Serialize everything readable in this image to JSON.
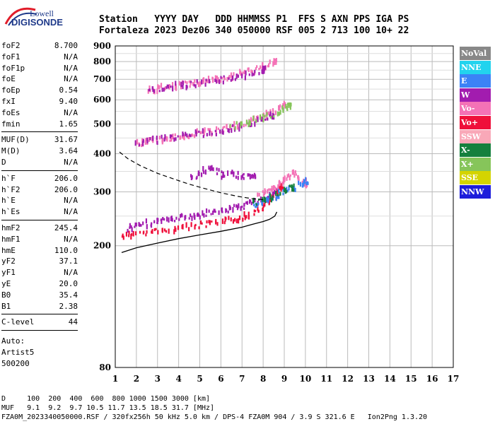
{
  "logo": {
    "top": "Lowell",
    "bottom": "DIGISONDE"
  },
  "header": {
    "line1": "Station   YYYY DAY   DDD HHMMSS P1  FFS S AXN PPS IGA PS",
    "line2": "Fortaleza 2023 Dez06 340 050000 RSF 005 2 713 100 10+ 22"
  },
  "params": {
    "group1": [
      {
        "label": "foF2",
        "value": "8.700"
      },
      {
        "label": "foF1",
        "value": "N/A"
      },
      {
        "label": "foF1p",
        "value": "N/A"
      },
      {
        "label": "foE",
        "value": "N/A"
      },
      {
        "label": "foEp",
        "value": "0.54"
      },
      {
        "label": "fxI",
        "value": "9.40"
      },
      {
        "label": "foEs",
        "value": "N/A"
      },
      {
        "label": "fmin",
        "value": "1.65"
      }
    ],
    "group2": [
      {
        "label": "MUF(D)",
        "value": "31.67"
      },
      {
        "label": "M(D)",
        "value": "3.64"
      },
      {
        "label": "D",
        "value": "N/A"
      }
    ],
    "group3": [
      {
        "label": "h`F",
        "value": "206.0"
      },
      {
        "label": "h`F2",
        "value": "206.0"
      },
      {
        "label": "h`E",
        "value": "N/A"
      },
      {
        "label": "h`Es",
        "value": "N/A"
      }
    ],
    "group4": [
      {
        "label": "hmF2",
        "value": "245.4"
      },
      {
        "label": "hmF1",
        "value": "N/A"
      },
      {
        "label": "hmE",
        "value": "110.0"
      },
      {
        "label": "yF2",
        "value": "37.1"
      },
      {
        "label": "yF1",
        "value": "N/A"
      },
      {
        "label": "yE",
        "value": "20.0"
      },
      {
        "label": "B0",
        "value": "35.4"
      },
      {
        "label": "B1",
        "value": "2.38"
      }
    ],
    "group5": [
      {
        "label": "C-level",
        "value": "44"
      }
    ],
    "auto": [
      "Auto:",
      "Artist5",
      "500200"
    ]
  },
  "legend": [
    {
      "label": "NoVal",
      "color": "#888888"
    },
    {
      "label": "NNE",
      "color": "#22d3ee"
    },
    {
      "label": "E",
      "color": "#3b82f6"
    },
    {
      "label": "W",
      "color": "#a21caf"
    },
    {
      "label": "Vo-",
      "color": "#f472b6"
    },
    {
      "label": "Vo+",
      "color": "#ef0f3a"
    },
    {
      "label": "SSW",
      "color": "#f9a8b8"
    },
    {
      "label": "X-",
      "color": "#15803d"
    },
    {
      "label": "X+",
      "color": "#86c55a"
    },
    {
      "label": "SSE",
      "color": "#d4d400"
    },
    {
      "label": "NNW",
      "color": "#1d1ddb"
    }
  ],
  "footer": {
    "line1": "D     100  200  400  600  800 1000 1500 3000 [km]",
    "line2": "MUF   9.1  9.2  9.7 10.5 11.7 13.5 18.5 31.7 [MHz]",
    "line3": "FZA0M_2023340050000.RSF / 320fx256h 50 kHz 5.0 km / DPS-4 FZA0M 904 / 3.9 S 321.6 E   Ion2Png 1.3.20"
  },
  "chart_data": {
    "type": "scatter",
    "xlim": [
      1,
      17
    ],
    "ylim": [
      80,
      900
    ],
    "x_ticks": [
      1,
      2,
      3,
      4,
      5,
      6,
      7,
      8,
      9,
      10,
      11,
      12,
      13,
      14,
      15,
      16,
      17
    ],
    "y_ticks": [
      80,
      200,
      300,
      400,
      500,
      600,
      700,
      800,
      900
    ],
    "grid": true,
    "y_scale": "log",
    "profile_line": {
      "x": [
        1.3,
        2,
        3,
        4,
        5,
        6,
        7,
        7.5,
        8,
        8.3,
        8.55,
        8.65
      ],
      "y": [
        190,
        197,
        204,
        211,
        217,
        223,
        230,
        235,
        240,
        244,
        250,
        258
      ]
    },
    "topside_line": {
      "x": [
        1.2,
        1.6,
        2.2,
        3,
        3.8,
        4.5,
        5.2,
        6,
        6.8,
        7.5,
        8.0
      ],
      "y": [
        405,
        385,
        365,
        345,
        330,
        318,
        308,
        298,
        290,
        285,
        283
      ]
    },
    "traces": [
      {
        "name": "Vo+",
        "color": "#ef0f3a",
        "x": [
          1.3,
          1.8,
          2.5,
          3.2,
          4,
          4.8,
          5.5,
          6.2,
          6.8,
          7.3,
          7.8,
          8.2,
          8.5,
          8.8
        ],
        "y": [
          215,
          218,
          221,
          224,
          228,
          232,
          236,
          240,
          246,
          252,
          262,
          275,
          290,
          310
        ]
      },
      {
        "name": "W",
        "color": "#a21caf",
        "x": [
          1.5,
          2,
          2.5,
          3,
          3.5,
          4,
          4.5,
          5,
          5.5,
          6,
          6.5,
          7,
          7.5,
          8,
          8.5
        ],
        "y": [
          228,
          232,
          236,
          240,
          243,
          246,
          249,
          252,
          256,
          260,
          265,
          270,
          276,
          284,
          300
        ]
      },
      {
        "name": "Vo-",
        "color": "#f472b6",
        "x": [
          7.8,
          8.2,
          8.5,
          8.8,
          9.1,
          9.4,
          9.7,
          10
        ],
        "y": [
          290,
          300,
          310,
          320,
          335,
          345,
          330,
          320
        ]
      },
      {
        "name": "E",
        "color": "#3b82f6",
        "x": [
          7.5,
          8,
          8.5,
          9,
          9.5,
          10
        ],
        "y": [
          272,
          280,
          290,
          300,
          310,
          325
        ]
      },
      {
        "name": "X-",
        "color": "#15803d",
        "x": [
          7.5,
          8.2,
          8.8,
          9.4
        ],
        "y": [
          275,
          285,
          300,
          310
        ]
      },
      {
        "name": "2F Vo-",
        "color": "#f472b6",
        "x": [
          2,
          2.5,
          3,
          3.5,
          4,
          4.5,
          5,
          5.5,
          6,
          6.5,
          7,
          7.5,
          8,
          8.5,
          9
        ],
        "y": [
          432,
          438,
          443,
          449,
          455,
          460,
          466,
          472,
          479,
          488,
          500,
          515,
          532,
          550,
          575
        ]
      },
      {
        "name": "2F W",
        "color": "#a21caf",
        "x": [
          2,
          2.8,
          3.6,
          4.4,
          5.2,
          6,
          6.8,
          7.6,
          8.4
        ],
        "y": [
          435,
          442,
          450,
          458,
          466,
          475,
          487,
          505,
          530
        ]
      },
      {
        "name": "2F X+",
        "color": "#86c55a",
        "x": [
          6.5,
          7.2,
          8,
          8.8,
          9.2
        ],
        "y": [
          490,
          505,
          525,
          550,
          570
        ]
      },
      {
        "name": "3F Vo-",
        "color": "#f472b6",
        "x": [
          2.5,
          3,
          3.5,
          4,
          4.5,
          5,
          5.5,
          6,
          6.5,
          7,
          7.5,
          8,
          8.5
        ],
        "y": [
          645,
          652,
          660,
          668,
          676,
          684,
          693,
          703,
          715,
          730,
          748,
          770,
          800
        ]
      },
      {
        "name": "3F W",
        "color": "#a21caf",
        "x": [
          2.5,
          3.2,
          4,
          4.8,
          5.6,
          6.4,
          7.2,
          8
        ],
        "y": [
          648,
          657,
          667,
          678,
          690,
          705,
          725,
          755
        ]
      },
      {
        "name": "Es W",
        "color": "#a21caf",
        "x": [
          4.5,
          5,
          5.5,
          6,
          6.5,
          7,
          7.5
        ],
        "y": [
          330,
          345,
          360,
          340,
          350,
          335,
          340
        ]
      }
    ]
  }
}
